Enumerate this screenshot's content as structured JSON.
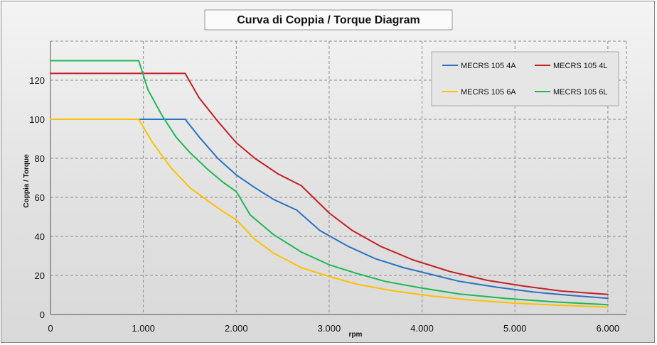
{
  "chart_data": {
    "type": "line",
    "title": "Curva di Coppia / Torque Diagram",
    "xlabel": "rpm",
    "ylabel": "Coppia / Torque",
    "xlim": [
      0,
      6200
    ],
    "ylim": [
      0,
      140
    ],
    "x_ticks": [
      0,
      1000,
      2000,
      3000,
      4000,
      5000,
      6000
    ],
    "x_tick_labels": [
      "0",
      "1.000",
      "2.000",
      "3.000",
      "4.000",
      "5.000",
      "6.000"
    ],
    "y_ticks": [
      0,
      20,
      40,
      60,
      80,
      100,
      120
    ],
    "y_tick_labels": [
      "0",
      "20",
      "40",
      "60",
      "80",
      "100",
      "120"
    ],
    "grid": true,
    "legend_position": "top-right",
    "series": [
      {
        "name": "MECRS 105 4A",
        "color": "#2a72c5",
        "points": [
          [
            0,
            100
          ],
          [
            1450,
            100
          ],
          [
            1600,
            91
          ],
          [
            1800,
            80
          ],
          [
            2000,
            71.5
          ],
          [
            2200,
            65
          ],
          [
            2400,
            59
          ],
          [
            2650,
            53.5
          ],
          [
            2900,
            43
          ],
          [
            3200,
            35
          ],
          [
            3500,
            28.5
          ],
          [
            3800,
            24
          ],
          [
            4100,
            20.5
          ],
          [
            4400,
            17
          ],
          [
            4800,
            14
          ],
          [
            5200,
            11.5
          ],
          [
            5600,
            9.8
          ],
          [
            6000,
            8.3
          ]
        ]
      },
      {
        "name": "MECRS 105 4L",
        "color": "#c42026",
        "points": [
          [
            0,
            123.5
          ],
          [
            1450,
            123.5
          ],
          [
            1600,
            111
          ],
          [
            1800,
            99
          ],
          [
            2000,
            88
          ],
          [
            2200,
            80
          ],
          [
            2450,
            72
          ],
          [
            2700,
            66
          ],
          [
            3000,
            52
          ],
          [
            3250,
            43
          ],
          [
            3550,
            35
          ],
          [
            3900,
            28
          ],
          [
            4300,
            22
          ],
          [
            4700,
            17.5
          ],
          [
            5100,
            14.5
          ],
          [
            5500,
            12
          ],
          [
            6000,
            10.3
          ]
        ]
      },
      {
        "name": "MECRS 105 6A",
        "color": "#ffc000",
        "points": [
          [
            0,
            100
          ],
          [
            950,
            100
          ],
          [
            1100,
            88
          ],
          [
            1300,
            75
          ],
          [
            1500,
            65
          ],
          [
            1700,
            58
          ],
          [
            1850,
            53
          ],
          [
            2000,
            48.5
          ],
          [
            2200,
            38.5
          ],
          [
            2400,
            31.5
          ],
          [
            2700,
            24
          ],
          [
            3000,
            19.5
          ],
          [
            3300,
            15.5
          ],
          [
            3700,
            12
          ],
          [
            4100,
            9.5
          ],
          [
            4500,
            7.5
          ],
          [
            5000,
            5.8
          ],
          [
            5500,
            4.7
          ],
          [
            6000,
            3.8
          ]
        ]
      },
      {
        "name": "MECRS 105 6L",
        "color": "#1db954",
        "points": [
          [
            0,
            130
          ],
          [
            950,
            130
          ],
          [
            1050,
            115
          ],
          [
            1200,
            102
          ],
          [
            1350,
            91
          ],
          [
            1500,
            83
          ],
          [
            1700,
            74
          ],
          [
            1850,
            68
          ],
          [
            2000,
            63
          ],
          [
            2150,
            51
          ],
          [
            2400,
            41
          ],
          [
            2700,
            32
          ],
          [
            3000,
            25.5
          ],
          [
            3300,
            21
          ],
          [
            3600,
            17
          ],
          [
            4000,
            13.5
          ],
          [
            4400,
            10.5
          ],
          [
            4900,
            8.2
          ],
          [
            5400,
            6.5
          ],
          [
            6000,
            5
          ]
        ]
      }
    ]
  }
}
